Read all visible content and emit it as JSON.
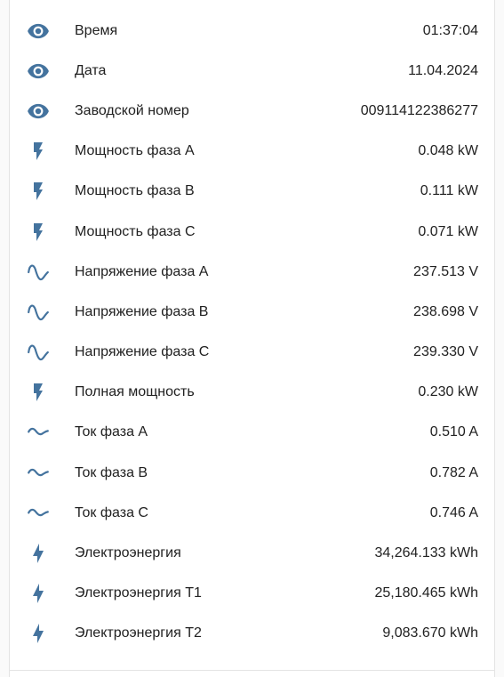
{
  "colors": {
    "icon": "#44739e",
    "text": "#212121"
  },
  "entities": [
    {
      "icon": "eye-icon",
      "label": "Время",
      "value": "01:37:04"
    },
    {
      "icon": "eye-icon",
      "label": "Дата",
      "value": "11.04.2024"
    },
    {
      "icon": "eye-icon",
      "label": "Заводской номер",
      "value": "00911412238627​7"
    },
    {
      "icon": "flash-icon",
      "label": "Мощность фаза A",
      "value": "0.048 kW"
    },
    {
      "icon": "flash-icon",
      "label": "Мощность фаза B",
      "value": "0.111 kW"
    },
    {
      "icon": "flash-icon",
      "label": "Мощность фаза C",
      "value": "0.071 kW"
    },
    {
      "icon": "sine-wave-icon",
      "label": "Напряжение фаза A",
      "value": "237.513 V"
    },
    {
      "icon": "sine-wave-icon",
      "label": "Напряжение фаза B",
      "value": "238.698 V"
    },
    {
      "icon": "sine-wave-icon",
      "label": "Напряжение фаза C",
      "value": "239.330 V"
    },
    {
      "icon": "flash-icon",
      "label": "Полная мощность",
      "value": "0.230 kW"
    },
    {
      "icon": "current-ac-icon",
      "label": "Ток фаза A",
      "value": "0.510 A"
    },
    {
      "icon": "current-ac-icon",
      "label": "Ток фаза B",
      "value": "0.782 A"
    },
    {
      "icon": "current-ac-icon",
      "label": "Ток фаза C",
      "value": "0.746 A"
    },
    {
      "icon": "lightning-bolt-icon",
      "label": "Электроэнергия",
      "value": "34,264.133 kWh"
    },
    {
      "icon": "lightning-bolt-icon",
      "label": "Электроэнергия T1",
      "value": "25,180.465 kWh"
    },
    {
      "icon": "lightning-bolt-icon",
      "label": "Электроэнергия T2",
      "value": "9,083.670 kWh"
    }
  ]
}
